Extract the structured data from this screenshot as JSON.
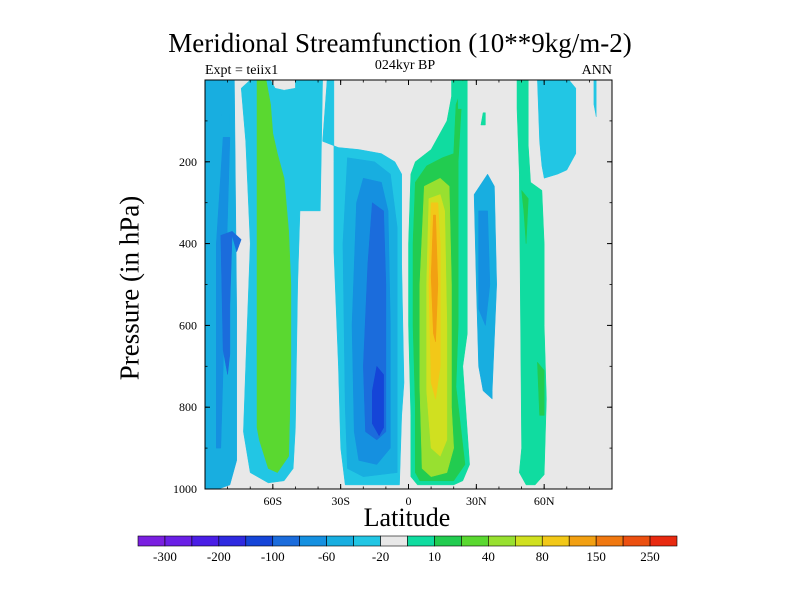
{
  "chart_data": {
    "type": "heatmap",
    "subtype": "filled-contour",
    "title": "Meridional Streamfunction (10**9kg/m-2)",
    "subtitle_left": "Expt = teiix1",
    "subtitle_center": "024kyr BP",
    "subtitle_right": "ANN",
    "xlabel": "Latitude",
    "ylabel": "Pressure (in hPa)",
    "xlim": [
      -90,
      90
    ],
    "ylim": [
      1000,
      0
    ],
    "x_ticks": [
      {
        "value": -60,
        "label": "60S"
      },
      {
        "value": -30,
        "label": "30S"
      },
      {
        "value": 0,
        "label": "0"
      },
      {
        "value": 30,
        "label": "30N"
      },
      {
        "value": 60,
        "label": "60N"
      }
    ],
    "y_ticks": [
      200,
      400,
      600,
      800,
      1000
    ],
    "background_color": "#e8e8e8",
    "colorbar": {
      "colors": [
        "#7a1fe0",
        "#6a1fe6",
        "#4a1ee6",
        "#2f2ae0",
        "#1545d8",
        "#1b6cdc",
        "#1590e0",
        "#18aee0",
        "#22c6e4",
        "#e8e8e8",
        "#10dca0",
        "#22cc50",
        "#5ad830",
        "#98e030",
        "#d0e020",
        "#f2c818",
        "#f2a012",
        "#f07810",
        "#ec5010",
        "#e82a10"
      ],
      "labels": [
        "-300",
        "-200",
        "-100",
        "-60",
        "-20",
        "10",
        "40",
        "80",
        "150",
        "250"
      ]
    },
    "contour_regions": [
      {
        "level": -20,
        "color": "#18aee0",
        "outline": [
          [
            -84,
            0
          ],
          [
            -90,
            0
          ],
          [
            -90,
            1000
          ],
          [
            -84,
            1000
          ],
          [
            -79,
            990
          ],
          [
            -76,
            930
          ],
          [
            -76,
            560
          ],
          [
            -77,
            0
          ]
        ]
      },
      {
        "level": -40,
        "color": "#18aee0",
        "outline": [
          [
            -83,
            85
          ],
          [
            -79,
            85
          ],
          [
            -79,
            110
          ],
          [
            -83,
            110
          ]
        ]
      },
      {
        "level": -40,
        "color": "#1590e0",
        "outline": [
          [
            -82,
            140
          ],
          [
            -79,
            140
          ],
          [
            -79,
            140
          ],
          [
            -83,
            900
          ],
          [
            -85,
            900
          ],
          [
            -85,
            400
          ]
        ]
      },
      {
        "level": -60,
        "color": "#1b6cdc",
        "outline": [
          [
            -83,
            380
          ],
          [
            -78,
            370
          ],
          [
            -74,
            390
          ],
          [
            -76,
            420
          ],
          [
            -78,
            380
          ],
          [
            -79,
            550
          ],
          [
            -79,
            670
          ],
          [
            -80,
            720
          ],
          [
            -82,
            660
          ]
        ]
      },
      {
        "level": -20,
        "color": "#22c6e4",
        "outline": [
          [
            -61,
            0
          ],
          [
            -70,
            0
          ],
          [
            -74,
            20
          ],
          [
            -72,
            150
          ],
          [
            -70,
            400
          ],
          [
            -72,
            700
          ],
          [
            -73,
            860
          ],
          [
            -70,
            960
          ],
          [
            -62,
            985
          ],
          [
            -55,
            980
          ],
          [
            -51,
            950
          ],
          [
            -50,
            850
          ],
          [
            -49,
            500
          ],
          [
            -48,
            320
          ],
          [
            -39,
            320
          ],
          [
            -38,
            0
          ],
          [
            -50,
            0
          ],
          [
            -50,
            20
          ],
          [
            -55,
            25
          ],
          [
            -59,
            20
          ]
        ]
      },
      {
        "level": 10,
        "color": "#5ad830",
        "outline": [
          [
            -63,
            0
          ],
          [
            -67,
            0
          ],
          [
            -67,
            850
          ],
          [
            -66,
            880
          ],
          [
            -62,
            950
          ],
          [
            -58,
            960
          ],
          [
            -53,
            920
          ],
          [
            -52,
            700
          ],
          [
            -52,
            500
          ],
          [
            -53,
            370
          ],
          [
            -55,
            240
          ],
          [
            -58,
            180
          ],
          [
            -60,
            130
          ],
          [
            -61,
            60
          ]
        ]
      },
      {
        "level": -20,
        "color": "#22c6e4",
        "outline": [
          [
            -33,
            0
          ],
          [
            -33,
            0
          ],
          [
            -36,
            0
          ],
          [
            -38,
            150
          ],
          [
            -31,
            165
          ],
          [
            -22,
            170
          ],
          [
            -12,
            180
          ],
          [
            -6,
            200
          ],
          [
            -3,
            230
          ],
          [
            -3,
            450
          ],
          [
            -2,
            740
          ],
          [
            -3,
            820
          ],
          [
            -4,
            990
          ],
          [
            -28,
            990
          ],
          [
            -30,
            900
          ],
          [
            -31,
            700
          ],
          [
            -33,
            420
          ],
          [
            -33,
            200
          ]
        ]
      },
      {
        "level": -40,
        "color": "#18aee0",
        "outline": [
          [
            -27,
            190
          ],
          [
            -15,
            200
          ],
          [
            -8,
            230
          ],
          [
            -5,
            360
          ],
          [
            -5,
            700
          ],
          [
            -5,
            960
          ],
          [
            -20,
            970
          ],
          [
            -27,
            950
          ],
          [
            -28,
            800
          ],
          [
            -29,
            400
          ]
        ]
      },
      {
        "level": -60,
        "color": "#1590e0",
        "outline": [
          [
            -20,
            240
          ],
          [
            -12,
            250
          ],
          [
            -9,
            320
          ],
          [
            -8,
            600
          ],
          [
            -8,
            900
          ],
          [
            -14,
            940
          ],
          [
            -22,
            930
          ],
          [
            -24,
            860
          ],
          [
            -25,
            600
          ],
          [
            -23,
            300
          ]
        ]
      },
      {
        "level": -100,
        "color": "#1b6cdc",
        "outline": [
          [
            -16,
            300
          ],
          [
            -11,
            320
          ],
          [
            -10,
            500
          ],
          [
            -10,
            860
          ],
          [
            -14,
            880
          ],
          [
            -19,
            860
          ],
          [
            -20,
            700
          ],
          [
            -18,
            450
          ]
        ]
      },
      {
        "level": -200,
        "color": "#1545d8",
        "outline": [
          [
            -14,
            700
          ],
          [
            -11,
            720
          ],
          [
            -11,
            850
          ],
          [
            -13,
            870
          ],
          [
            -16,
            840
          ],
          [
            -16,
            760
          ]
        ]
      },
      {
        "level": 10,
        "color": "#10dca0",
        "outline": [
          [
            1,
            230
          ],
          [
            3,
            200
          ],
          [
            10,
            170
          ],
          [
            17,
            100
          ],
          [
            19,
            40
          ],
          [
            19,
            0
          ],
          [
            26,
            0
          ],
          [
            26,
            170
          ],
          [
            26,
            620
          ],
          [
            24,
            700
          ],
          [
            27,
            940
          ],
          [
            24,
            980
          ],
          [
            20,
            990
          ],
          [
            4,
            990
          ],
          [
            1,
            970
          ],
          [
            1,
            820
          ],
          [
            0,
            600
          ],
          [
            0,
            400
          ]
        ]
      },
      {
        "level": 40,
        "color": "#22cc50",
        "outline": [
          [
            3,
            250
          ],
          [
            8,
            210
          ],
          [
            15,
            190
          ],
          [
            20,
            180
          ],
          [
            21,
            60
          ],
          [
            25,
            0
          ],
          [
            24,
            0
          ],
          [
            22,
            200
          ],
          [
            22,
            600
          ],
          [
            21,
            750
          ],
          [
            25,
            940
          ],
          [
            20,
            980
          ],
          [
            5,
            980
          ],
          [
            3,
            960
          ],
          [
            3,
            800
          ],
          [
            2,
            600
          ],
          [
            2,
            400
          ]
        ]
      },
      {
        "level": 40,
        "color": "#98e030",
        "outline": [
          [
            7,
            260
          ],
          [
            14,
            240
          ],
          [
            18,
            260
          ],
          [
            19,
            500
          ],
          [
            19,
            800
          ],
          [
            20,
            900
          ],
          [
            17,
            960
          ],
          [
            10,
            970
          ],
          [
            6,
            950
          ],
          [
            5,
            750
          ],
          [
            5,
            500
          ]
        ]
      },
      {
        "level": 80,
        "color": "#d0e020",
        "outline": [
          [
            9,
            290
          ],
          [
            14,
            280
          ],
          [
            16,
            320
          ],
          [
            17,
            600
          ],
          [
            17,
            880
          ],
          [
            14,
            920
          ],
          [
            10,
            900
          ],
          [
            8,
            760
          ],
          [
            8,
            500
          ]
        ]
      },
      {
        "level": 150,
        "color": "#f2c818",
        "outline": [
          [
            10,
            300
          ],
          [
            13,
            300
          ],
          [
            14,
            400
          ],
          [
            14,
            700
          ],
          [
            12,
            780
          ],
          [
            10,
            740
          ],
          [
            9,
            500
          ]
        ]
      },
      {
        "level": 150,
        "color": "#f2a012",
        "outline": [
          [
            11,
            330
          ],
          [
            12,
            330
          ],
          [
            13,
            500
          ],
          [
            12,
            640
          ],
          [
            11,
            620
          ],
          [
            10,
            480
          ]
        ]
      },
      {
        "level": -20,
        "color": "#18aee0",
        "outline": [
          [
            29,
            280
          ],
          [
            35,
            230
          ],
          [
            38,
            260
          ],
          [
            39,
            500
          ],
          [
            37,
            760
          ],
          [
            37,
            780
          ],
          [
            33,
            760
          ],
          [
            31,
            700
          ],
          [
            30,
            500
          ]
        ]
      },
      {
        "level": -40,
        "color": "#1590e0",
        "outline": [
          [
            31,
            320
          ],
          [
            35,
            320
          ],
          [
            36,
            500
          ],
          [
            34,
            600
          ],
          [
            31,
            560
          ]
        ]
      },
      {
        "level": 10,
        "color": "#10dca0",
        "outline": [
          [
            25,
            0
          ],
          [
            25,
            0
          ],
          [
            22,
            10
          ],
          [
            22,
            70
          ],
          [
            25,
            70
          ]
        ]
      },
      {
        "level": 10,
        "color": "#10dca0",
        "outline": [
          [
            33,
            80
          ],
          [
            34,
            80
          ],
          [
            34,
            110
          ],
          [
            32,
            110
          ]
        ]
      },
      {
        "level": 10,
        "color": "#10dca0",
        "outline": [
          [
            49,
            0
          ],
          [
            48,
            0
          ],
          [
            48,
            70
          ],
          [
            49,
            230
          ],
          [
            50,
            900
          ],
          [
            49,
            960
          ],
          [
            52,
            990
          ],
          [
            56,
            990
          ],
          [
            60,
            965
          ],
          [
            61,
            780
          ],
          [
            60,
            600
          ],
          [
            60,
            400
          ],
          [
            59,
            270
          ],
          [
            54,
            250
          ],
          [
            53,
            160
          ],
          [
            53,
            40
          ],
          [
            53,
            0
          ]
        ]
      },
      {
        "level": 40,
        "color": "#22cc50",
        "outline": [
          [
            50,
            270
          ],
          [
            53,
            290
          ],
          [
            52,
            400
          ],
          [
            51,
            320
          ]
        ]
      },
      {
        "level": 40,
        "color": "#22cc50",
        "outline": [
          [
            57,
            690
          ],
          [
            60,
            710
          ],
          [
            60,
            820
          ],
          [
            58,
            820
          ]
        ]
      },
      {
        "level": -20,
        "color": "#22c6e4",
        "outline": [
          [
            58,
            0
          ],
          [
            57,
            0
          ],
          [
            58,
            150
          ],
          [
            59,
            210
          ],
          [
            60,
            240
          ],
          [
            66,
            230
          ],
          [
            70,
            220
          ],
          [
            74,
            180
          ],
          [
            74,
            20
          ],
          [
            71,
            0
          ]
        ]
      },
      {
        "level": -20,
        "color": "#22c6e4",
        "outline": [
          [
            83,
            0
          ],
          [
            82,
            0
          ],
          [
            82,
            60
          ],
          [
            83,
            90
          ]
        ]
      }
    ]
  }
}
